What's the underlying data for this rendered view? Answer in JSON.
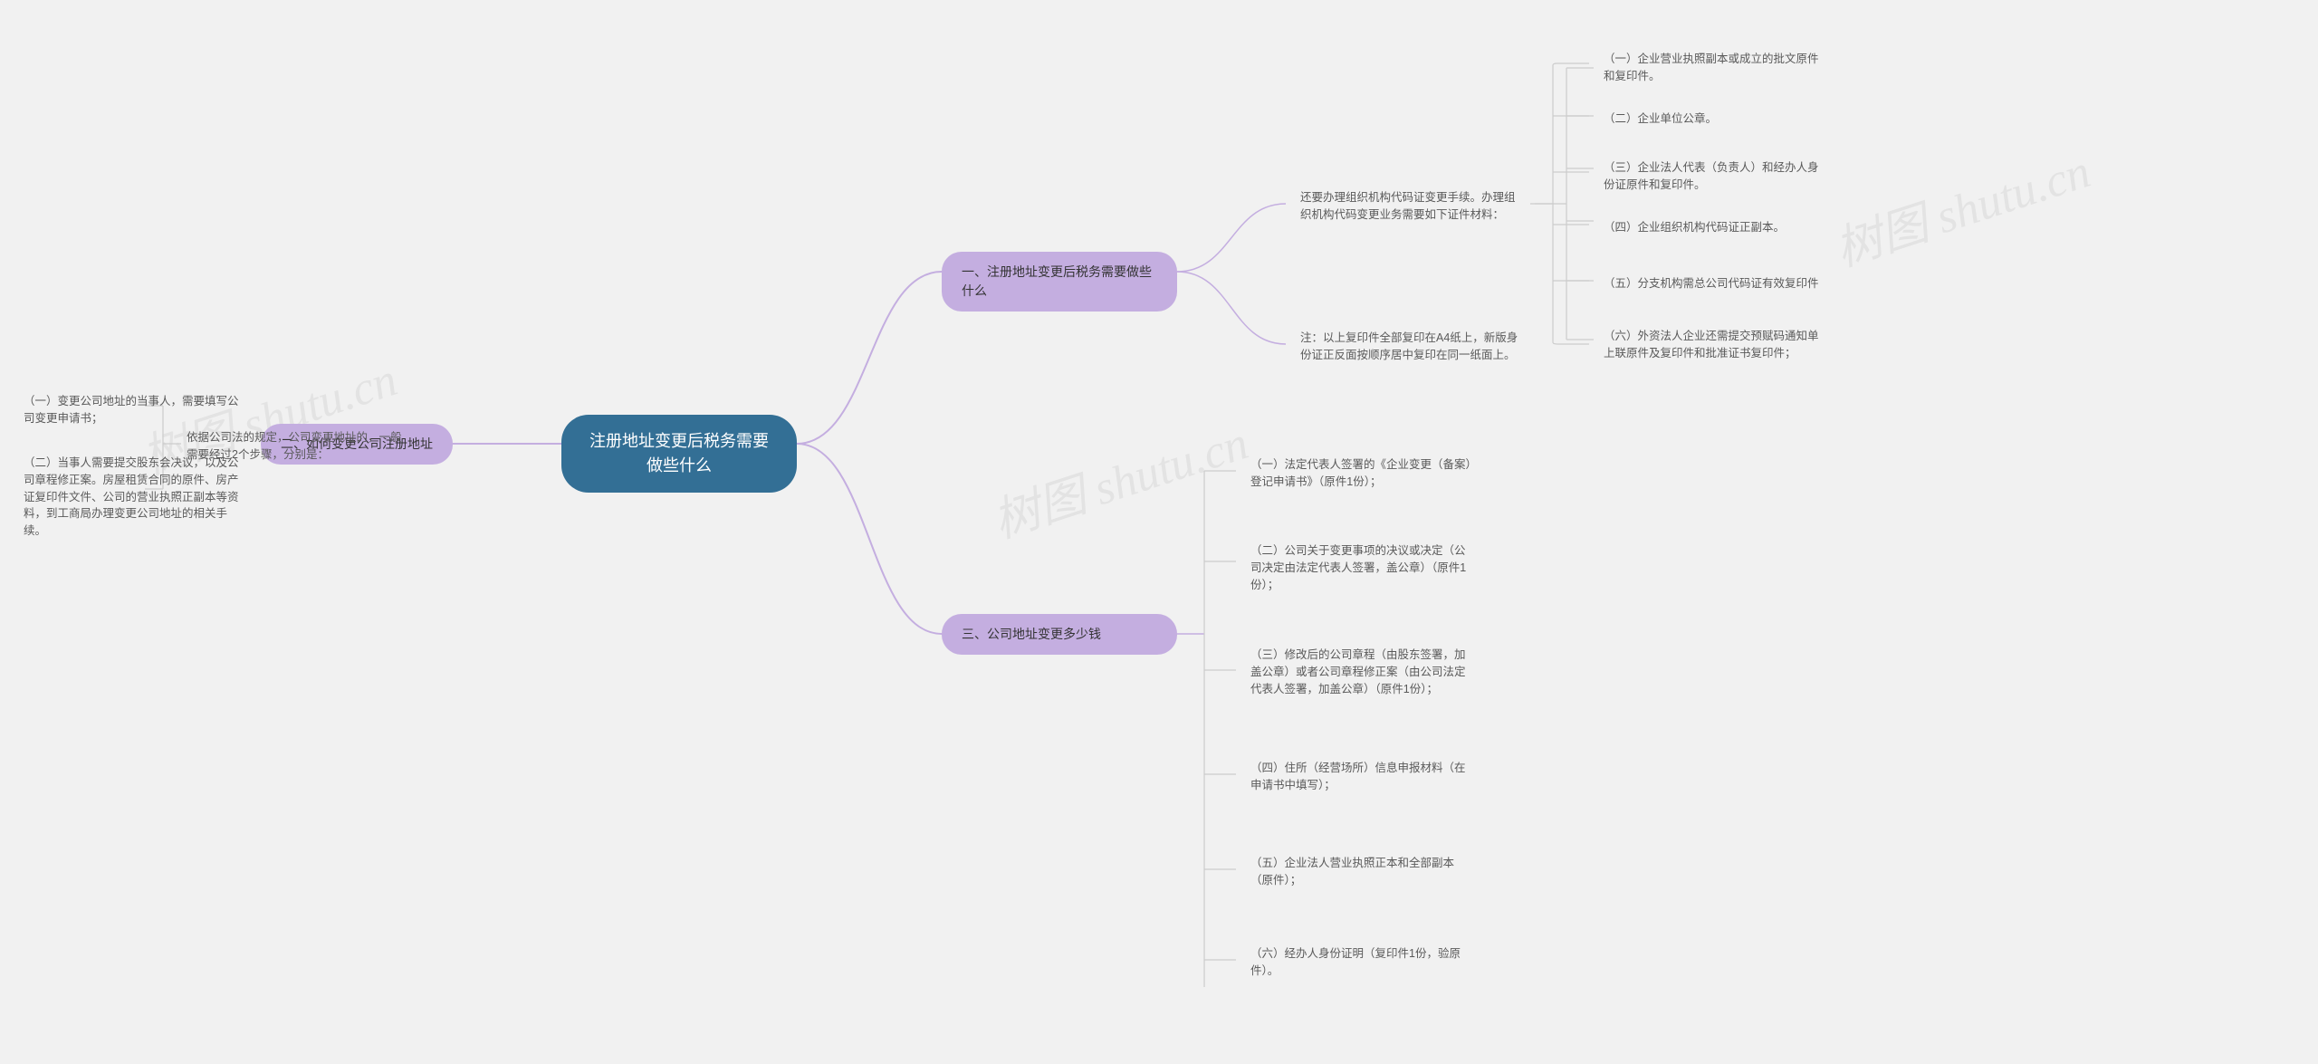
{
  "background_color": "#f1f1f1",
  "edge_color": "#c4aee0",
  "bracket_color": "#cccccc",
  "root": {
    "text": "注册地址变更后税务需要做些什么",
    "bg": "#336f95",
    "fg": "#ffffff"
  },
  "branches": {
    "b1": {
      "text": "一、注册地址变更后税务需要做些什么",
      "bg": "#c4aee0"
    },
    "b2": {
      "text": "二、如何变更公司注册地址",
      "bg": "#c4aee0"
    },
    "b3": {
      "text": "三、公司地址变更多少钱",
      "bg": "#c4aee0"
    }
  },
  "b1_sub1": "还要办理组织机构代码证变更手续。办理组织机构代码变更业务需要如下证件材料：",
  "b1_sub2": "注：以上复印件全部复印在A4纸上，新版身份证正反面按顺序居中复印在同一纸面上。",
  "b1_leaves": {
    "l1": "（一）企业营业执照副本或成立的批文原件和复印件。",
    "l2": "（二）企业单位公章。",
    "l3": "（三）企业法人代表（负责人）和经办人身份证原件和复印件。",
    "l4": "（四）企业组织机构代码证正副本。",
    "l5": "（五）分支机构需总公司代码证有效复印件",
    "l6": "（六）外资法人企业还需提交预赋码通知单上联原件及复印件和批准证书复印件；"
  },
  "b2_sub": "依据公司法的规定，公司变更地址的，一般需要经过2个步骤，分别是：",
  "b2_leaves": {
    "l1": "（一）变更公司地址的当事人，需要填写公司变更申请书；",
    "l2": "（二）当事人需要提交股东会决议，以及公司章程修正案。房屋租赁合同的原件、房产证复印件文件、公司的营业执照正副本等资料，到工商局办理变更公司地址的相关手续。"
  },
  "b3_leaves": {
    "l1": "（一）法定代表人签署的《企业变更（备案）登记申请书》（原件1份）；",
    "l2": "（二）公司关于变更事项的决议或决定（公司决定由法定代表人签署，盖公章）（原件1份）；",
    "l3": "（三）修改后的公司章程（由股东签署，加盖公章）或者公司章程修正案（由公司法定代表人签署，加盖公章）（原件1份）；",
    "l4": "（四）住所（经营场所）信息申报材料（在申请书中填写）；",
    "l5": "（五）企业法人营业执照正本和全部副本（原件）；",
    "l6": "（六）经办人身份证明（复印件1份，验原件）。"
  },
  "watermarks": {
    "w1": "树图 shutu.cn",
    "w2": "树图 shutu.cn",
    "w3": "树图 shutu.cn"
  }
}
